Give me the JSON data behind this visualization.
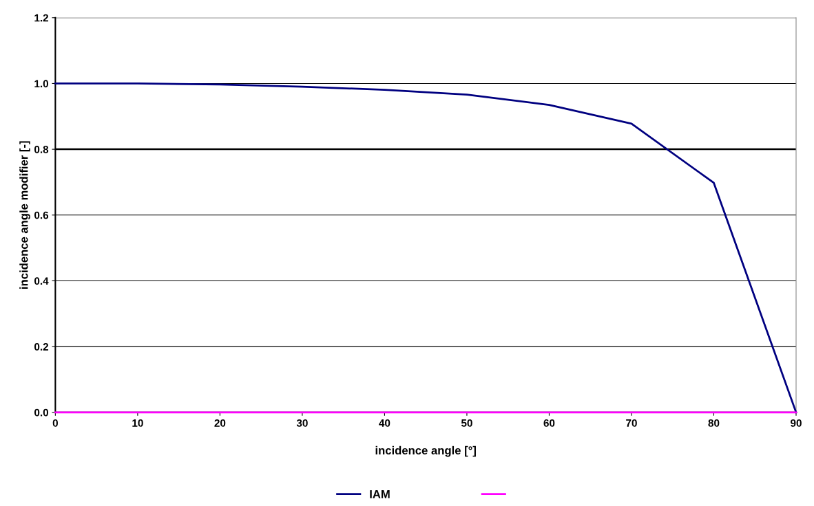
{
  "chart_data": {
    "type": "line",
    "xlabel": "incidence angle [°]",
    "ylabel": "incidence angle modifier [-]",
    "x": [
      0,
      10,
      20,
      30,
      40,
      50,
      60,
      70,
      80,
      90
    ],
    "series": [
      {
        "name": "IAM",
        "color": "#000080",
        "values": [
          1.0,
          1.0,
          0.997,
          0.99,
          0.981,
          0.966,
          0.935,
          0.878,
          0.698,
          0.0
        ]
      },
      {
        "color": "#ff00ff",
        "values": [
          0,
          0,
          0,
          0,
          0,
          0,
          0,
          0,
          0,
          0
        ]
      }
    ],
    "xlim": [
      0,
      90
    ],
    "xticks": [
      0,
      10,
      20,
      30,
      40,
      50,
      60,
      70,
      80,
      90
    ],
    "ylim": [
      0,
      1.2
    ],
    "yticks": [
      {
        "value": 0,
        "label": "0.0"
      },
      {
        "value": 0.2,
        "label": "0.2"
      },
      {
        "value": 0.4,
        "label": "0.4"
      },
      {
        "value": 0.6,
        "label": "0.6"
      },
      {
        "value": 0.8,
        "label": "0.8"
      },
      {
        "value": 1.0,
        "label": "1.0"
      },
      {
        "value": 1.2,
        "label": "1.2"
      }
    ],
    "ref_lines": [
      {
        "axis": "y",
        "value": 0.8,
        "color": "#000000"
      }
    ],
    "grid": "y",
    "legend": "bottom",
    "marker": "none",
    "line_style": "solid"
  }
}
